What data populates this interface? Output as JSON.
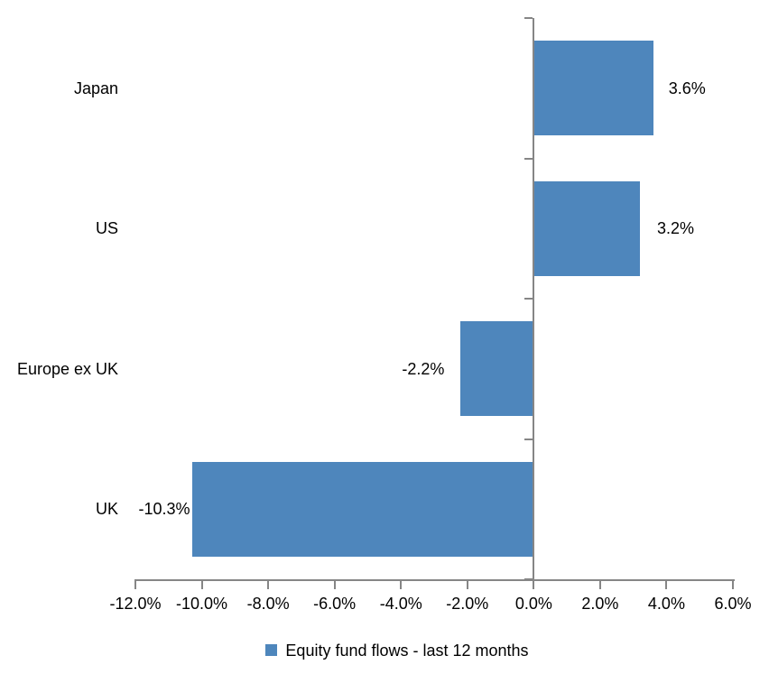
{
  "chart_data": {
    "type": "bar",
    "orientation": "horizontal",
    "categories": [
      "Japan",
      "US",
      "Europe ex UK",
      "UK"
    ],
    "values": [
      3.6,
      3.2,
      -2.2,
      -10.3
    ],
    "data_labels": [
      "3.6%",
      "3.2%",
      "-2.2%",
      "-10.3%"
    ],
    "legend": "Equity fund flows - last 12 months",
    "legend_position": "bottom",
    "x_ticks": [
      "-12.0%",
      "-10.0%",
      "-8.0%",
      "-6.0%",
      "-4.0%",
      "-2.0%",
      "0.0%",
      "2.0%",
      "4.0%",
      "6.0%"
    ],
    "xlim": [
      -12,
      6
    ],
    "xlabel": "",
    "ylabel": "",
    "title": "",
    "grid": false,
    "bar_color": "#4E86BC",
    "axis_color": "#868686",
    "text_color": "#000000"
  }
}
